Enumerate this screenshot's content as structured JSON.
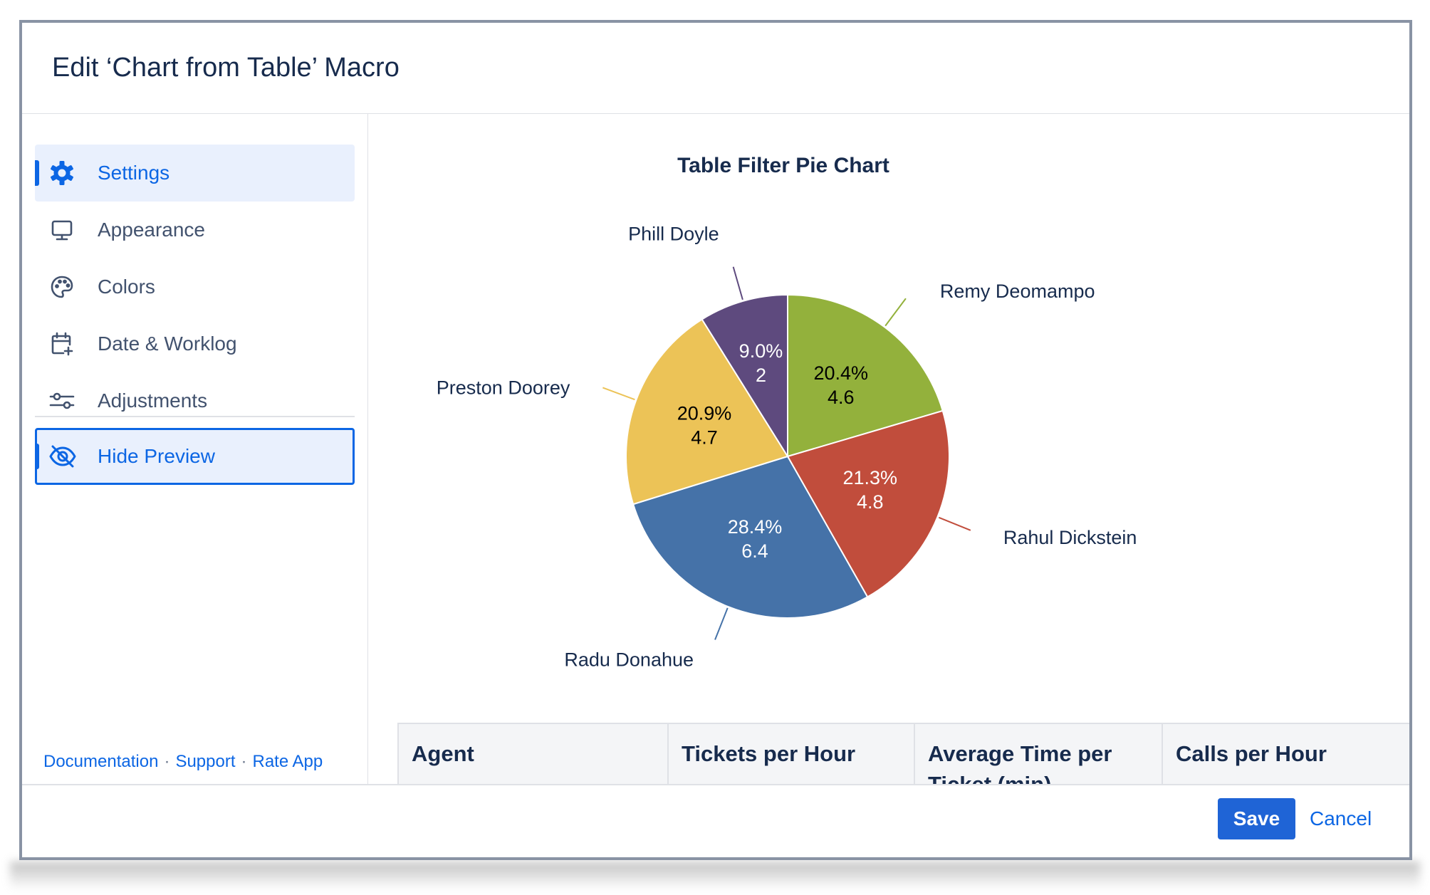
{
  "dialog": {
    "title": "Edit ‘Chart from Table’ Macro"
  },
  "sidebar": {
    "items": [
      {
        "label": "Settings",
        "icon": "gear-icon",
        "active": true
      },
      {
        "label": "Appearance",
        "icon": "monitor-icon",
        "active": false
      },
      {
        "label": "Colors",
        "icon": "palette-icon",
        "active": false
      },
      {
        "label": "Date & Worklog",
        "icon": "calendar-plus-icon",
        "active": false
      },
      {
        "label": "Adjustments",
        "icon": "sliders-icon",
        "active": false
      }
    ],
    "hide_preview": {
      "label": "Hide Preview",
      "icon": "eye-off-icon"
    },
    "footer": {
      "documentation": "Documentation",
      "support": "Support",
      "rate_app": "Rate App",
      "separator": "·"
    }
  },
  "chart_data": {
    "type": "pie",
    "title": "Table Filter Pie Chart",
    "slices": [
      {
        "label": "Remy Deomampo",
        "value": 4.6,
        "percent": "20.4%",
        "color": "#93b13c"
      },
      {
        "label": "Rahul Dickstein",
        "value": 4.8,
        "percent": "21.3%",
        "color": "#c14d3c"
      },
      {
        "label": "Radu Donahue",
        "value": 6.4,
        "percent": "28.4%",
        "color": "#4572a8"
      },
      {
        "label": "Preston Doorey",
        "value": 4.7,
        "percent": "20.9%",
        "color": "#ecc357"
      },
      {
        "label": "Phill Doyle",
        "value": 2,
        "percent": "9.0%",
        "color": "#5e4a7e"
      }
    ],
    "label_colors": [
      "#000000",
      "#ffffff",
      "#ffffff",
      "#000000",
      "#ffffff"
    ]
  },
  "table": {
    "headers": [
      "Agent",
      "Tickets per Hour",
      "Average Time per Ticket (min)",
      "Calls per Hour"
    ]
  },
  "footer": {
    "save_label": "Save",
    "cancel_label": "Cancel"
  },
  "colors": {
    "accent": "#0c66e4",
    "save_button": "#1f64d6"
  }
}
